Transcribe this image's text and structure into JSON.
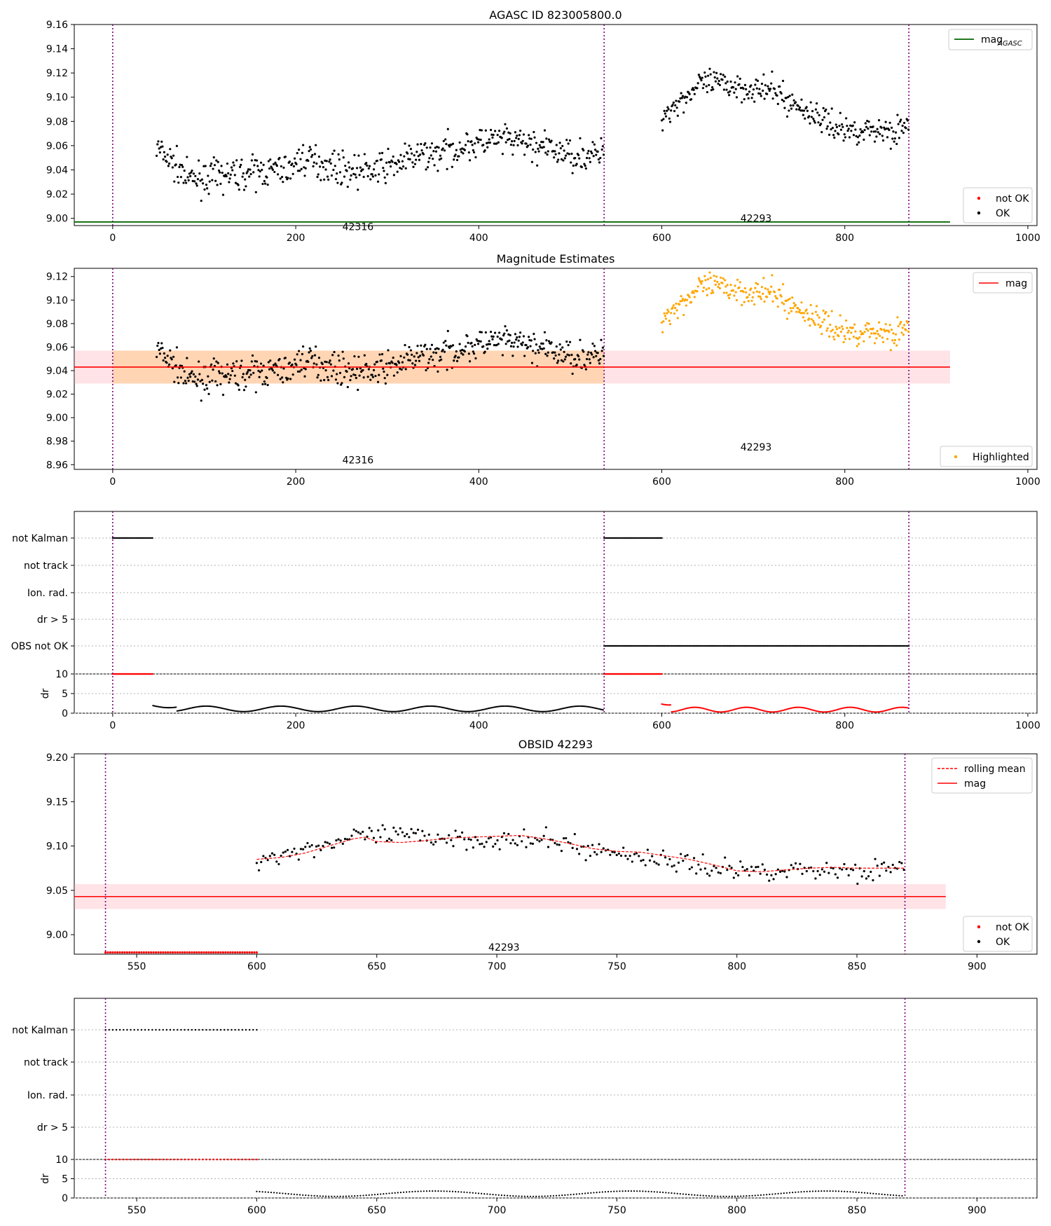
{
  "chart_data": [
    {
      "type": "scatter",
      "title": "AGASC ID 823005800.0",
      "xlim": [
        -42,
        1010
      ],
      "ylim": [
        8.994,
        9.16
      ],
      "xticks": [
        0,
        200,
        400,
        600,
        800,
        1000
      ],
      "yticks": [
        9.0,
        9.02,
        9.04,
        9.06,
        9.08,
        9.1,
        9.12,
        9.14,
        9.16
      ],
      "obs_boundaries": [
        0,
        537,
        870
      ],
      "obs_labels": [
        {
          "text": "42316",
          "x": 268,
          "y": 8.993
        },
        {
          "text": "42293",
          "x": 703,
          "y": 9.0
        }
      ],
      "reference_line": {
        "name": "mag_AGASC",
        "y": 8.997,
        "x_end": 915,
        "color": "#006400"
      },
      "legend_lines": [
        "mag"
      ],
      "legend_points": [
        "not OK",
        "OK"
      ]
    },
    {
      "type": "scatter",
      "title": "Magnitude Estimates",
      "xlim": [
        -42,
        1010
      ],
      "ylim": [
        8.956,
        9.127
      ],
      "xticks": [
        0,
        200,
        400,
        600,
        800,
        1000
      ],
      "yticks": [
        8.96,
        8.98,
        9.0,
        9.02,
        9.04,
        9.06,
        9.08,
        9.1,
        9.12
      ],
      "obs_boundaries": [
        0,
        537,
        870
      ],
      "obs_labels": [
        {
          "text": "42316",
          "x": 268,
          "y": 8.964
        },
        {
          "text": "42293",
          "x": 703,
          "y": 8.975
        }
      ],
      "mag_line": {
        "y": 9.043,
        "band": [
          9.029,
          9.057
        ],
        "x_end": 915
      },
      "highlight_band": {
        "x": [
          0,
          537
        ],
        "y": [
          9.029,
          9.057
        ]
      },
      "legend_lines": [
        "mag"
      ],
      "legend_points": [
        "Highlighted"
      ],
      "colors": {
        "mag": "#ff0000",
        "highlighted": "#ffa500"
      }
    },
    {
      "type": "scatter",
      "title": "",
      "xlim": [
        -42,
        1010
      ],
      "xticks": [
        0,
        200,
        400,
        600,
        800,
        1000
      ],
      "flag_categories": [
        "not Kalman",
        "not track",
        "Ion. rad.",
        "dr > 5",
        "OBS not OK"
      ],
      "flags": {
        "not Kalman": [
          [
            0,
            44
          ],
          [
            537,
            600
          ]
        ],
        "OBS not OK": [
          [
            537,
            870
          ]
        ]
      },
      "dr_ylabel": "dr",
      "dr_yticks": [
        0,
        5,
        10
      ],
      "dr_clipped_at": 10,
      "dr_clipped_ranges": [
        [
          0,
          44
        ],
        [
          537,
          600
        ]
      ],
      "dr_ok_range": [
        44,
        537
      ],
      "dr_notok_range": [
        600,
        870
      ],
      "obs_boundaries": [
        0,
        537,
        870
      ]
    },
    {
      "type": "scatter",
      "title": "OBSID 42293",
      "xlim": [
        524,
        925
      ],
      "ylim": [
        8.978,
        9.204
      ],
      "xticks": [
        550,
        600,
        650,
        700,
        750,
        800,
        850,
        900
      ],
      "yticks": [
        9.0,
        9.05,
        9.1,
        9.15,
        9.2
      ],
      "obs_boundaries": [
        537,
        870
      ],
      "obs_labels": [
        {
          "text": "42293",
          "x": 703,
          "y": 8.986
        }
      ],
      "mag_line": {
        "y": 9.043,
        "band": [
          9.029,
          9.057
        ],
        "x_end": 887
      },
      "not_ok_range": [
        537,
        600
      ],
      "not_ok_y": 8.98,
      "rolling_mean": [
        [
          600,
          9.085
        ],
        [
          610,
          9.087
        ],
        [
          620,
          9.092
        ],
        [
          630,
          9.1
        ],
        [
          640,
          9.108
        ],
        [
          645,
          9.11
        ],
        [
          650,
          9.105
        ],
        [
          660,
          9.104
        ],
        [
          670,
          9.106
        ],
        [
          680,
          9.109
        ],
        [
          690,
          9.11
        ],
        [
          700,
          9.111
        ],
        [
          710,
          9.112
        ],
        [
          720,
          9.108
        ],
        [
          730,
          9.103
        ],
        [
          740,
          9.097
        ],
        [
          750,
          9.094
        ],
        [
          760,
          9.093
        ],
        [
          770,
          9.089
        ],
        [
          780,
          9.085
        ],
        [
          790,
          9.079
        ],
        [
          800,
          9.072
        ],
        [
          810,
          9.071
        ],
        [
          820,
          9.073
        ],
        [
          830,
          9.075
        ],
        [
          840,
          9.076
        ],
        [
          850,
          9.075
        ],
        [
          860,
          9.075
        ],
        [
          870,
          9.075
        ]
      ],
      "legend_lines": [
        "rolling mean",
        "mag"
      ],
      "legend_points": [
        "not OK",
        "OK"
      ]
    },
    {
      "type": "scatter",
      "title": "",
      "xlim": [
        524,
        925
      ],
      "xticks": [
        550,
        600,
        650,
        700,
        750,
        800,
        850,
        900
      ],
      "flag_categories": [
        "not Kalman",
        "not track",
        "Ion. rad.",
        "dr > 5"
      ],
      "flags": {
        "not Kalman": [
          [
            537,
            600
          ]
        ]
      },
      "dr_ylabel": "dr",
      "dr_yticks": [
        0,
        5,
        10
      ],
      "dr_clipped_at": 10,
      "dr_clipped_ranges": [
        [
          537,
          600
        ]
      ],
      "dr_ok_range": [
        600,
        870
      ],
      "obs_boundaries": [
        537,
        870
      ]
    }
  ]
}
